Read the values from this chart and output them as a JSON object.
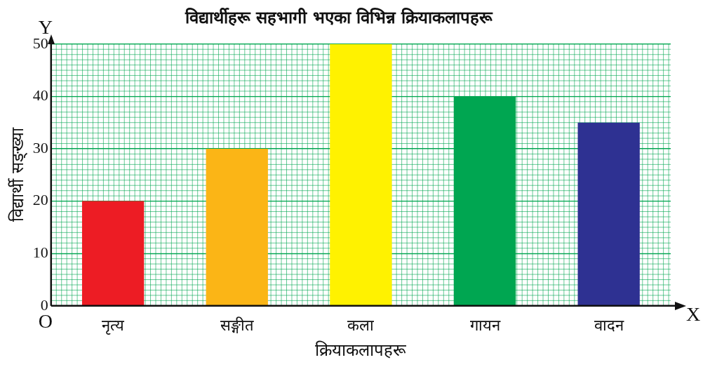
{
  "chart_data": {
    "type": "bar",
    "title": "विद्यार्थीहरू सहभागी भएका विभिन्न क्रियाकलापहरू",
    "xlabel": "क्रियाकलापहरू",
    "ylabel": "विद्यार्थी सङ्ख्या",
    "categories": [
      "नृत्य",
      "सङ्गीत",
      "कला",
      "गायन",
      "वादन"
    ],
    "values": [
      20,
      30,
      50,
      40,
      35
    ],
    "colors": [
      "#ed1c24",
      "#fbb516",
      "#fff200",
      "#00a651",
      "#2e3192"
    ],
    "ylim": [
      0,
      50
    ],
    "yticks": [
      0,
      10,
      20,
      30,
      40,
      50
    ],
    "grid": true,
    "legend": false,
    "annotations": [
      "Y",
      "X",
      "O"
    ]
  }
}
